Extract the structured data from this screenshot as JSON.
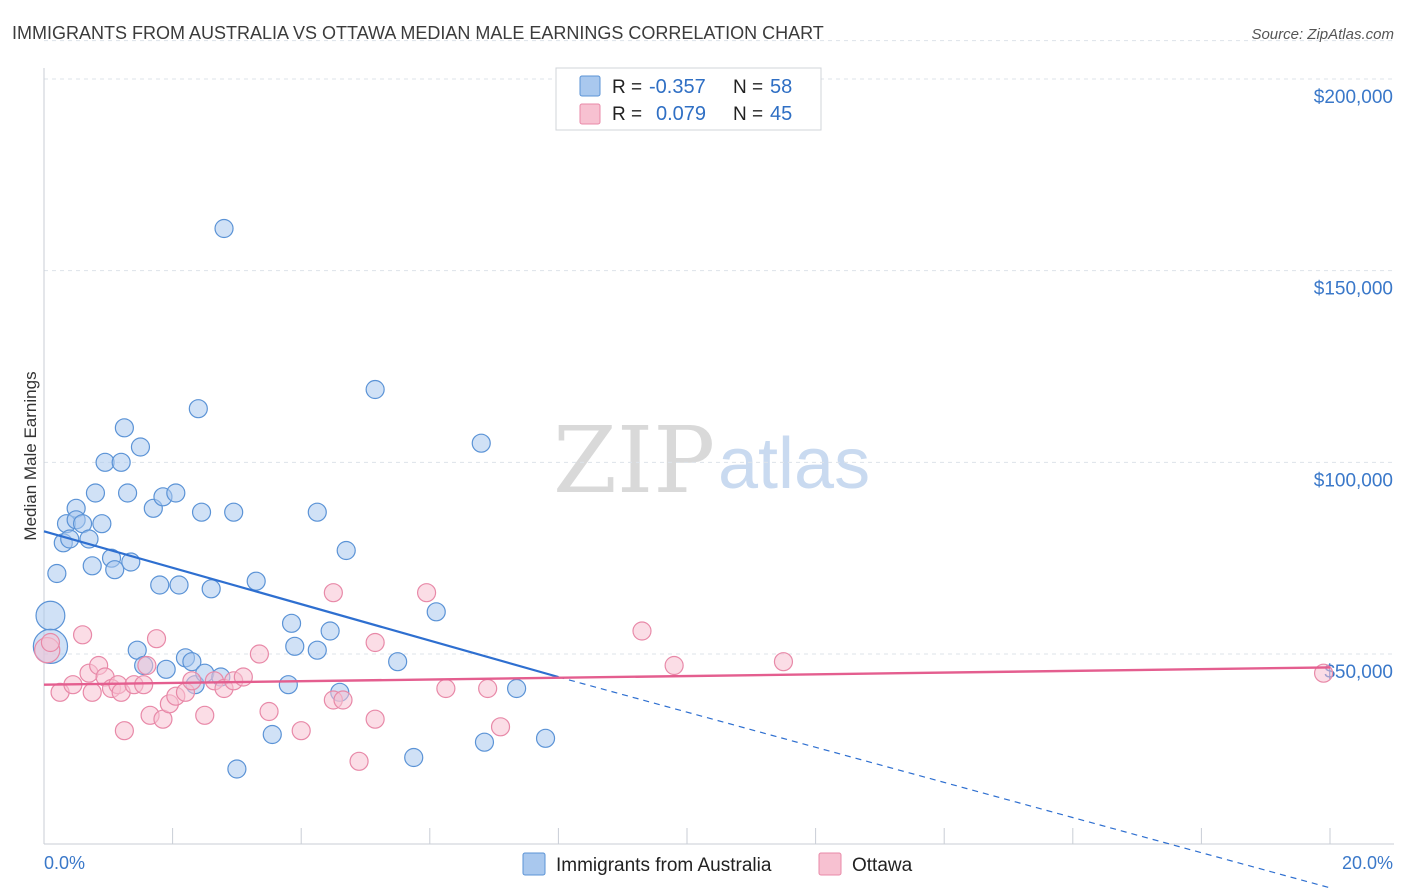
{
  "title": "IMMIGRANTS FROM AUSTRALIA VS OTTAWA MEDIAN MALE EARNINGS CORRELATION CHART",
  "source": "Source: ZipAtlas.com",
  "watermark": {
    "zip": "ZIP",
    "atlas": "atlas"
  },
  "colors": {
    "blue_fill": "#a9c8ee",
    "blue_stroke": "#5b93d6",
    "blue_line": "#2e6fd0",
    "pink_fill": "#f7c1d1",
    "pink_stroke": "#e889a8",
    "pink_line": "#e45e8f",
    "grid": "#dde3ea",
    "axis_text": "#3a78c9"
  },
  "legend": {
    "blue": {
      "r_label": "R =",
      "r_value": "-0.357",
      "n_label": "N =",
      "n_value": "58"
    },
    "pink": {
      "r_label": "R =",
      "r_value": "0.079",
      "n_label": "N =",
      "n_value": "45"
    }
  },
  "bottom_legend": {
    "blue": "Immigrants from Australia",
    "pink": "Ottawa"
  },
  "chart_data": {
    "type": "scatter",
    "title": "IMMIGRANTS FROM AUSTRALIA VS OTTAWA MEDIAN MALE EARNINGS CORRELATION CHART",
    "xlabel": "",
    "ylabel": "Median Male Earnings",
    "xlim": [
      0,
      20
    ],
    "ylim": [
      0,
      210000
    ],
    "x_tick_labels": {
      "min": "0.0%",
      "max": "20.0%"
    },
    "y_ticks": [
      {
        "value": 50000,
        "label": "$50,000"
      },
      {
        "value": 100000,
        "label": "$100,000"
      },
      {
        "value": 150000,
        "label": "$150,000"
      },
      {
        "value": 200000,
        "label": "$200,000"
      }
    ],
    "series": [
      {
        "name": "Immigrants from Australia",
        "color": "blue",
        "R": -0.357,
        "N": 58,
        "trend": {
          "x0": 0,
          "y0": 82000,
          "x1": 8.0,
          "y1": 44000,
          "dash_to_x": 20,
          "dash_to_y": -11000
        },
        "points": [
          [
            0.1,
            60000,
            1.6
          ],
          [
            0.1,
            52000,
            1.9
          ],
          [
            0.2,
            71000,
            1
          ],
          [
            0.3,
            79000,
            1
          ],
          [
            0.35,
            84000,
            1
          ],
          [
            0.4,
            80000,
            1
          ],
          [
            0.5,
            88000,
            1
          ],
          [
            0.5,
            85000,
            1
          ],
          [
            0.6,
            84000,
            1
          ],
          [
            0.7,
            80000,
            1
          ],
          [
            0.75,
            73000,
            1
          ],
          [
            0.8,
            92000,
            1
          ],
          [
            0.9,
            84000,
            1
          ],
          [
            0.95,
            100000,
            1
          ],
          [
            1.05,
            75000,
            1
          ],
          [
            1.1,
            72000,
            1
          ],
          [
            1.2,
            100000,
            1
          ],
          [
            1.25,
            109000,
            1
          ],
          [
            1.3,
            92000,
            1
          ],
          [
            1.35,
            74000,
            1
          ],
          [
            1.45,
            51000,
            1
          ],
          [
            1.5,
            104000,
            1
          ],
          [
            1.55,
            47000,
            1
          ],
          [
            1.7,
            88000,
            1
          ],
          [
            1.8,
            68000,
            1
          ],
          [
            1.85,
            91000,
            1
          ],
          [
            1.9,
            46000,
            1
          ],
          [
            2.05,
            92000,
            1
          ],
          [
            2.1,
            68000,
            1
          ],
          [
            2.2,
            49000,
            1
          ],
          [
            2.3,
            48000,
            1
          ],
          [
            2.35,
            42000,
            1
          ],
          [
            2.4,
            114000,
            1
          ],
          [
            2.45,
            87000,
            1
          ],
          [
            2.5,
            45000,
            1
          ],
          [
            2.6,
            67000,
            1
          ],
          [
            2.8,
            161000,
            1
          ],
          [
            2.75,
            44000,
            1
          ],
          [
            2.95,
            87000,
            1
          ],
          [
            3.0,
            20000,
            1
          ],
          [
            3.3,
            69000,
            1
          ],
          [
            3.55,
            29000,
            1
          ],
          [
            3.8,
            42000,
            1
          ],
          [
            3.85,
            58000,
            1
          ],
          [
            3.9,
            52000,
            1
          ],
          [
            4.25,
            87000,
            1
          ],
          [
            4.25,
            51000,
            1
          ],
          [
            4.45,
            56000,
            1
          ],
          [
            4.6,
            40000,
            1
          ],
          [
            4.7,
            77000,
            1
          ],
          [
            5.15,
            119000,
            1
          ],
          [
            5.5,
            48000,
            1
          ],
          [
            5.75,
            23000,
            1
          ],
          [
            6.1,
            61000,
            1
          ],
          [
            6.8,
            105000,
            1
          ],
          [
            6.85,
            27000,
            1
          ],
          [
            7.35,
            41000,
            1
          ],
          [
            7.8,
            28000,
            1
          ]
        ]
      },
      {
        "name": "Ottawa",
        "color": "pink",
        "R": 0.079,
        "N": 45,
        "trend": {
          "x0": 0,
          "y0": 42000,
          "x1": 20,
          "y1": 46500
        },
        "points": [
          [
            0.05,
            51000,
            1.4
          ],
          [
            0.1,
            53000,
            1
          ],
          [
            0.25,
            40000,
            1
          ],
          [
            0.45,
            42000,
            1
          ],
          [
            0.6,
            55000,
            1
          ],
          [
            0.7,
            45000,
            1
          ],
          [
            0.75,
            40000,
            1
          ],
          [
            0.85,
            47000,
            1
          ],
          [
            0.95,
            44000,
            1
          ],
          [
            1.05,
            41000,
            1
          ],
          [
            1.15,
            42000,
            1
          ],
          [
            1.2,
            40000,
            1
          ],
          [
            1.25,
            30000,
            1
          ],
          [
            1.4,
            42000,
            1
          ],
          [
            1.55,
            42000,
            1
          ],
          [
            1.6,
            47000,
            1
          ],
          [
            1.65,
            34000,
            1
          ],
          [
            1.75,
            54000,
            1
          ],
          [
            1.85,
            33000,
            1
          ],
          [
            1.95,
            37000,
            1
          ],
          [
            2.05,
            39000,
            1
          ],
          [
            2.2,
            40000,
            1
          ],
          [
            2.3,
            43000,
            1
          ],
          [
            2.5,
            34000,
            1
          ],
          [
            2.65,
            43000,
            1
          ],
          [
            2.8,
            41000,
            1
          ],
          [
            2.95,
            43000,
            1
          ],
          [
            3.1,
            44000,
            1
          ],
          [
            3.35,
            50000,
            1
          ],
          [
            3.5,
            35000,
            1
          ],
          [
            4.0,
            30000,
            1
          ],
          [
            4.5,
            66000,
            1
          ],
          [
            4.5,
            38000,
            1
          ],
          [
            4.65,
            38000,
            1
          ],
          [
            4.9,
            22000,
            1
          ],
          [
            5.15,
            53000,
            1
          ],
          [
            5.15,
            33000,
            1
          ],
          [
            5.95,
            66000,
            1
          ],
          [
            6.25,
            41000,
            1
          ],
          [
            6.9,
            41000,
            1
          ],
          [
            7.1,
            31000,
            1
          ],
          [
            9.3,
            56000,
            1
          ],
          [
            9.8,
            47000,
            1
          ],
          [
            11.5,
            48000,
            1
          ],
          [
            19.9,
            45000,
            1
          ]
        ]
      }
    ]
  }
}
